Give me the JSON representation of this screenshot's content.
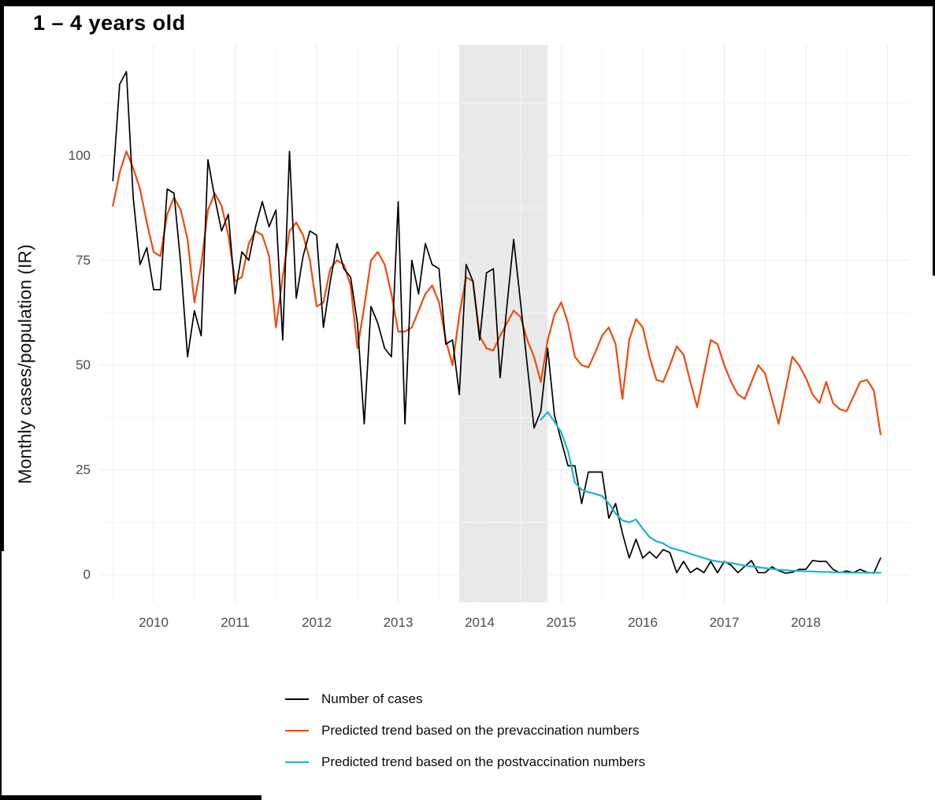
{
  "title": "1 – 4 years old",
  "y_axis_title": "Monthly cases/population (IR)",
  "x_ticks": [
    "2010",
    "2011",
    "2012",
    "2013",
    "2014",
    "2015",
    "2016",
    "2017",
    "2018"
  ],
  "y_ticks": [
    "0",
    "25",
    "50",
    "75",
    "100"
  ],
  "legend": {
    "items": [
      {
        "label": "Number of cases",
        "color": "#000000"
      },
      {
        "label": "Predicted trend based on the prevaccination numbers",
        "color": "#EC4D0E"
      },
      {
        "label": "Predicted trend based on the postvaccination numbers",
        "color": "#1DB4C6"
      }
    ]
  },
  "colors": {
    "cases_line": "#000000",
    "prevaccination_line": "#EC4D0E",
    "postvaccination_line": "#1DB4C6",
    "shaded_band": "#e9e9e9",
    "grid_major": "#ececec",
    "grid_minor": "#f5f5f5",
    "axis_text": "#4d4d4d",
    "background": "#ffffff",
    "border": "#000000"
  },
  "chart_data": {
    "type": "line",
    "title": "1 – 4 years old",
    "xlabel": "",
    "ylabel": "Monthly cases/population (IR)",
    "x_start": "2009-07",
    "frequency": "monthly",
    "x_tick_years": [
      2010,
      2011,
      2012,
      2013,
      2014,
      2015,
      2016,
      2017,
      2018
    ],
    "y_tick_values": [
      0,
      25,
      50,
      75,
      100
    ],
    "y_minor_values": [
      12.5,
      37.5,
      62.5,
      87.5,
      112.5
    ],
    "ylim": [
      0,
      126
    ],
    "grid": true,
    "legend_position": "bottom",
    "shaded_region": {
      "from": "2013-10",
      "to": "2014-11"
    },
    "series": [
      {
        "name": "Number of cases",
        "color_key": "cases_line",
        "stroke_width": 1.7,
        "start_month_index": 0,
        "values": [
          94,
          117,
          120,
          90,
          74,
          78,
          68,
          68,
          92,
          91,
          74,
          52,
          63,
          57,
          99,
          90,
          82,
          86,
          67,
          77,
          75,
          83,
          89,
          83,
          87,
          56,
          101,
          66,
          76,
          82,
          81,
          59,
          70,
          79,
          73,
          71,
          60,
          36,
          64,
          60,
          54,
          52,
          89,
          36,
          75,
          67,
          79,
          74,
          73,
          55,
          56,
          43,
          74,
          70,
          56,
          72,
          73,
          47,
          64,
          80,
          65,
          50,
          35,
          39,
          54,
          38,
          32,
          26,
          26,
          17,
          24.5,
          24.5,
          24.5,
          13.5,
          17,
          10,
          4,
          8.5,
          4,
          5.5,
          4,
          6,
          5.3,
          0.5,
          3.2,
          0.5,
          1.6,
          0.5,
          3.2,
          0.5,
          3.2,
          2.3,
          0.5,
          2,
          3.4,
          0.5,
          0.5,
          1.9,
          1,
          0.4,
          0.6,
          1.3,
          1.3,
          3.4,
          3.2,
          3.2,
          1.3,
          0.5,
          0.9,
          0.5,
          1.3,
          0.6,
          0.4,
          4
        ]
      },
      {
        "name": "Predicted trend based on the prevaccination numbers",
        "color_key": "prevaccination_line",
        "stroke_width": 2.2,
        "start_month_index": 0,
        "values": [
          88,
          96,
          101,
          97,
          92,
          84,
          77,
          76,
          86,
          90,
          87,
          80,
          65,
          74,
          87,
          91,
          88,
          81,
          70,
          71,
          79,
          82,
          81,
          76,
          59,
          71,
          82,
          84,
          81,
          75,
          64,
          65,
          73,
          75,
          74,
          69,
          54,
          64,
          75,
          77,
          74,
          67,
          58,
          58,
          59,
          63,
          67,
          69,
          65,
          56,
          50,
          62,
          71,
          70,
          57,
          54,
          53.5,
          57,
          60,
          63,
          61.5,
          56,
          52,
          46,
          56,
          62,
          65,
          60,
          52,
          50,
          49.5,
          53,
          57,
          59,
          55,
          42,
          56,
          61,
          59,
          52,
          46.5,
          46,
          50,
          54.5,
          52.5,
          46,
          40,
          48,
          56,
          55,
          50,
          46,
          43,
          42,
          46,
          50,
          48,
          42,
          36,
          44,
          52,
          50,
          47,
          43,
          41,
          46,
          41,
          39.5,
          39,
          42.5,
          46,
          46.5,
          44,
          33.5
        ]
      },
      {
        "name": "Predicted trend based on the postvaccination numbers",
        "color_key": "postvaccination_line",
        "stroke_width": 2.2,
        "start_month_index": 63,
        "values": [
          37,
          38.8,
          36.5,
          34,
          29.5,
          22,
          20.3,
          19.7,
          19.3,
          18.8,
          17,
          14.6,
          13,
          12.5,
          13.2,
          11,
          9,
          8,
          7.5,
          6.5,
          6,
          5.6,
          5,
          4.5,
          4,
          3.5,
          3.2,
          3,
          2.8,
          2.5,
          2.2,
          2,
          1.8,
          1.6,
          1.4,
          1.2,
          1.1,
          1,
          0.9,
          0.8,
          0.8,
          0.7,
          0.7,
          0.6,
          0.6,
          0.5,
          0.5,
          0.5,
          0.5,
          0.5,
          0.5
        ]
      }
    ]
  }
}
